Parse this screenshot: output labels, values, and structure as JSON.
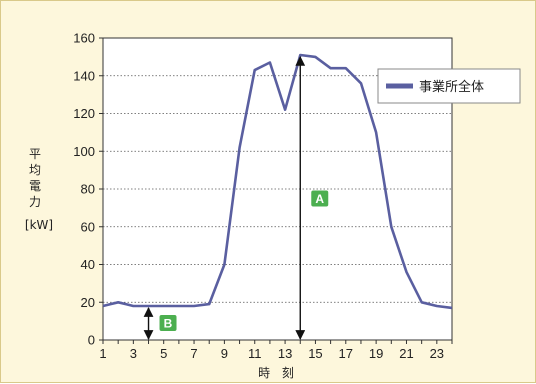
{
  "chart_data": {
    "type": "line",
    "title": "",
    "xlabel": "時 刻",
    "ylabel_lines": [
      "平",
      "均",
      "電",
      "力"
    ],
    "ylabel_unit": "[kW]",
    "x": [
      1,
      1.5,
      2,
      2.5,
      3,
      4,
      5,
      6,
      7,
      8,
      9,
      10,
      11,
      12,
      13,
      14,
      15,
      16,
      17,
      18,
      19,
      20,
      21,
      22,
      23,
      24
    ],
    "xlim": [
      1,
      24
    ],
    "xticks": [
      1,
      3,
      5,
      7,
      9,
      11,
      13,
      15,
      17,
      19,
      21,
      23
    ],
    "ylim": [
      0,
      160
    ],
    "yticks": [
      0,
      20,
      40,
      60,
      80,
      100,
      120,
      140,
      160
    ],
    "grid": "horizontal-dotted",
    "legend_position": "right",
    "series": [
      {
        "name": "事業所全体",
        "color": "#5a5fa0",
        "values": [
          18,
          19,
          20,
          19,
          18,
          18,
          18,
          18,
          18,
          19,
          40,
          102,
          143,
          147,
          122,
          151,
          150,
          144,
          144,
          136,
          110,
          60,
          36,
          20,
          18,
          17
        ]
      }
    ],
    "annotations": [
      {
        "label": "A",
        "color": "#4caf50",
        "x": 14,
        "y_from": 0,
        "y_to": 151,
        "label_y": 75
      },
      {
        "label": "B",
        "color": "#4caf50",
        "x": 4,
        "y_from": 0,
        "y_to": 18,
        "label_y": 9
      }
    ]
  }
}
